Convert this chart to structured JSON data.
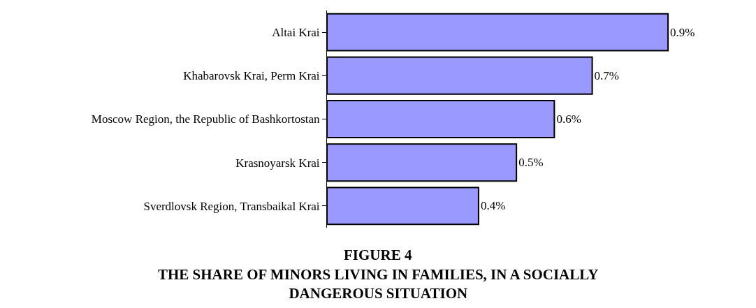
{
  "chart_data": {
    "type": "bar",
    "orientation": "horizontal",
    "title": "FIGURE 4",
    "subtitle": "THE SHARE OF MINORS LIVING IN FAMILIES, IN A SOCIALLY DANGEROUS SITUATION",
    "categories": [
      "Altai Krai",
      "Khabarovsk Krai, Perm Krai",
      "Moscow Region, the Republic of Bashkortostan",
      "Krasnoyarsk Krai",
      "Sverdlovsk Region, Transbaikal Krai"
    ],
    "values": [
      0.9,
      0.7,
      0.6,
      0.5,
      0.4
    ],
    "value_labels": [
      "0.9%",
      "0.7%",
      "0.6%",
      "0.5%",
      "0.4%"
    ],
    "color": "#9999ff"
  }
}
